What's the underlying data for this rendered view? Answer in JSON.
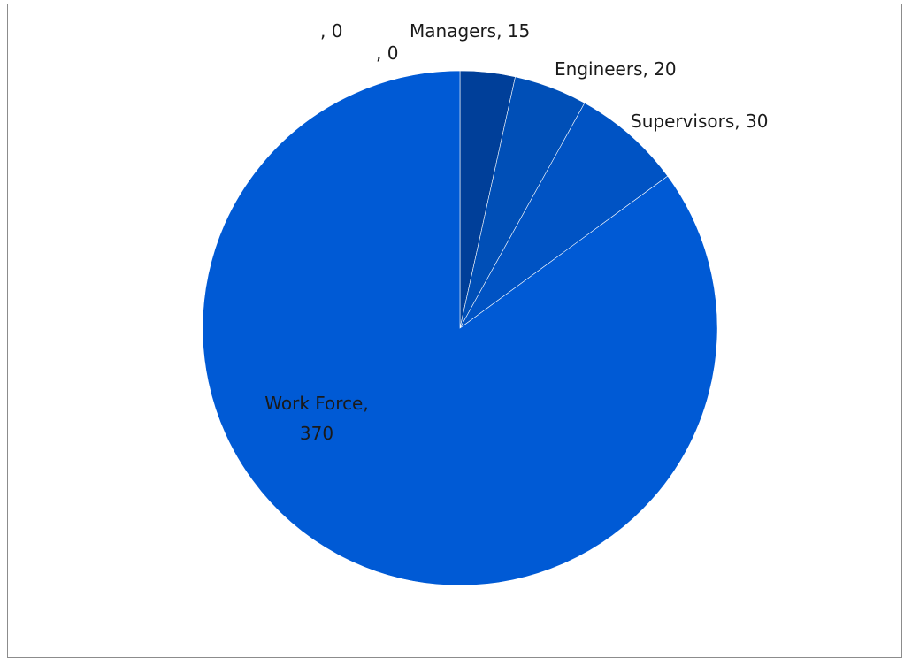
{
  "chart_data": {
    "type": "pie",
    "slices": [
      {
        "label": "",
        "value": 0,
        "color": "#0f3f8f",
        "data_label": ", 0"
      },
      {
        "label": "",
        "value": 0,
        "color": "#123f93",
        "data_label": ", 0"
      },
      {
        "label": "Managers",
        "value": 15,
        "color": "#003f99",
        "data_label": "Managers, 15"
      },
      {
        "label": "Engineers",
        "value": 20,
        "color": "#004fb7",
        "data_label": "Engineers, 20"
      },
      {
        "label": "Supervisors",
        "value": 30,
        "color": "#0053c4",
        "data_label": "Supervisors, 30"
      },
      {
        "label": "Work Force",
        "value": 370,
        "color": "#005ad5",
        "data_label_lines": [
          "Work Force,",
          "370"
        ]
      }
    ],
    "start_angle": "12 o'clock",
    "direction": "clockwise",
    "legend": "none"
  }
}
